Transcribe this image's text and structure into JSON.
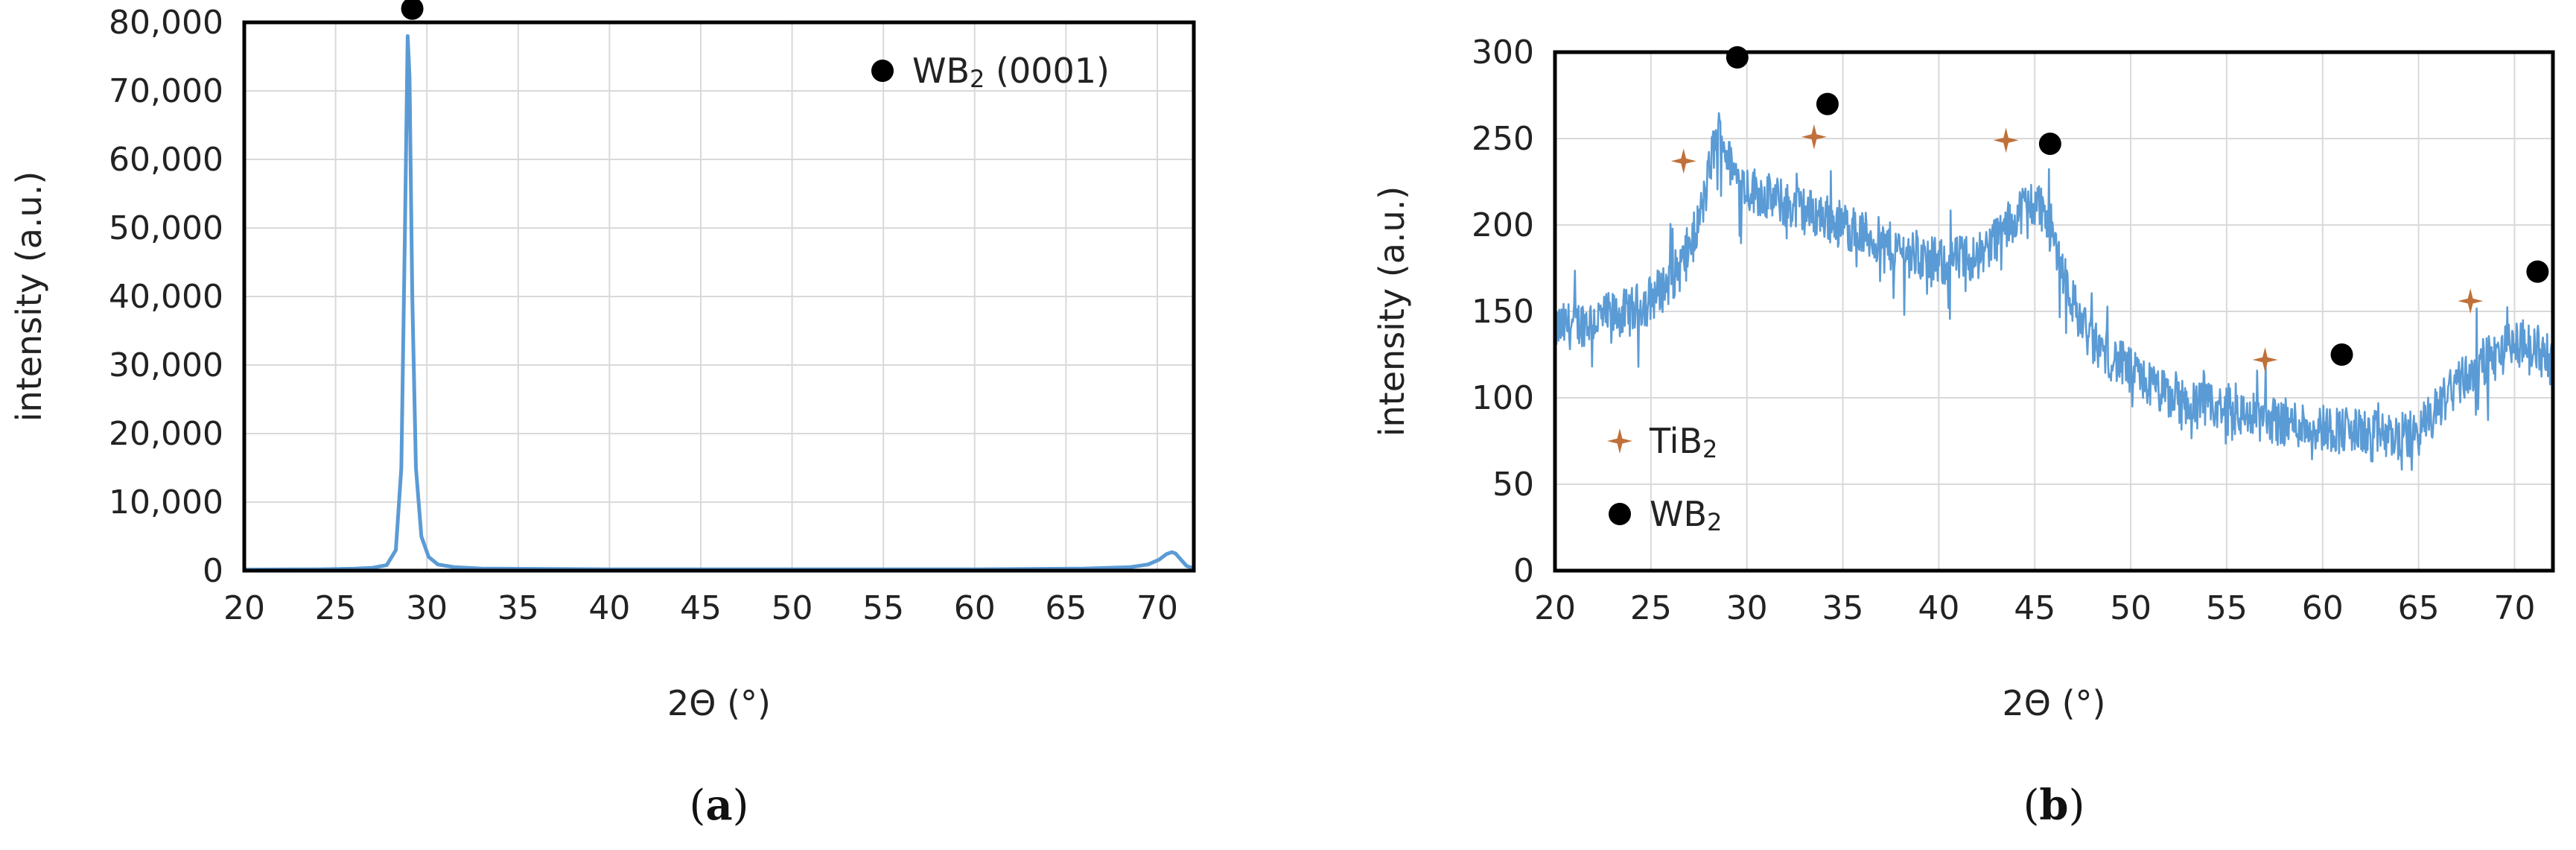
{
  "chart_data": [
    {
      "id": "a",
      "type": "line",
      "caption_letter": "a",
      "xlabel": "2Θ (°)",
      "ylabel": "intensity (a.u.)",
      "xlim": [
        20,
        72
      ],
      "ylim": [
        0,
        80000
      ],
      "xticks": [
        20,
        25,
        30,
        35,
        40,
        45,
        50,
        55,
        60,
        65,
        70
      ],
      "yticks": [
        0,
        10000,
        20000,
        30000,
        40000,
        50000,
        60000,
        70000,
        80000
      ],
      "ytick_labels": [
        "0",
        "10,000",
        "20,000",
        "30,000",
        "40,000",
        "50,000",
        "60,000",
        "70,000",
        "80,000"
      ],
      "grid": true,
      "legend_position": "top-right",
      "legend": [
        {
          "marker": "circle",
          "main": "WB",
          "sub": "2",
          "rest": " (0001)"
        }
      ],
      "series": [
        {
          "color": "#5b9bd5",
          "x": [
            20,
            24,
            26,
            27,
            27.8,
            28.3,
            28.6,
            28.8,
            28.95,
            29.05,
            29.2,
            29.4,
            29.7,
            30.1,
            30.6,
            31.5,
            33,
            40,
            50,
            60,
            66,
            68.5,
            69.5,
            70.1,
            70.5,
            70.8,
            71.0,
            71.3,
            71.6,
            72
          ],
          "y": [
            150,
            200,
            280,
            400,
            800,
            3000,
            15000,
            50000,
            78000,
            72000,
            40000,
            15000,
            5000,
            2000,
            900,
            500,
            300,
            200,
            180,
            200,
            300,
            500,
            900,
            1600,
            2400,
            2700,
            2500,
            1600,
            700,
            300
          ]
        }
      ],
      "annotations": [
        {
          "marker": "circle",
          "x": 29.2,
          "y": 82000
        }
      ]
    },
    {
      "id": "b",
      "type": "line",
      "caption_letter": "b",
      "xlabel": "2Θ (°)",
      "ylabel": "intensity (a.u.)",
      "xlim": [
        20,
        72
      ],
      "ylim": [
        0,
        300
      ],
      "xticks": [
        20,
        25,
        30,
        35,
        40,
        45,
        50,
        55,
        60,
        65,
        70
      ],
      "yticks": [
        0,
        50,
        100,
        150,
        200,
        250,
        300
      ],
      "ytick_labels": [
        "0",
        "50",
        "100",
        "150",
        "200",
        "250",
        "300"
      ],
      "grid": true,
      "legend_position": "bottom-left",
      "legend": [
        {
          "marker": "star",
          "main": "TiB",
          "sub": "2",
          "rest": ""
        },
        {
          "marker": "circle",
          "main": "WB",
          "sub": "2",
          "rest": ""
        }
      ],
      "series": [
        {
          "color": "#5b9bd5",
          "noise": 14,
          "x": [
            20,
            22,
            24,
            25.5,
            26.5,
            27.3,
            27.8,
            28.2,
            28.6,
            29.2,
            30,
            32,
            34,
            36,
            38,
            40,
            42,
            43.5,
            44.5,
            45.3,
            46.2,
            47,
            48,
            50,
            52,
            55,
            58,
            60,
            62,
            64,
            65,
            66,
            67,
            68,
            69,
            70,
            71,
            72
          ],
          "y": [
            140,
            145,
            150,
            162,
            175,
            195,
            215,
            242,
            255,
            232,
            222,
            212,
            205,
            195,
            185,
            178,
            182,
            198,
            212,
            212,
            185,
            155,
            132,
            115,
            100,
            92,
            86,
            83,
            80,
            77,
            80,
            95,
            108,
            118,
            125,
            132,
            130,
            120
          ]
        }
      ],
      "annotations": [
        {
          "marker": "star",
          "x": 26.7,
          "y": 237
        },
        {
          "marker": "star",
          "x": 33.5,
          "y": 251
        },
        {
          "marker": "star",
          "x": 43.5,
          "y": 249
        },
        {
          "marker": "star",
          "x": 57,
          "y": 122
        },
        {
          "marker": "star",
          "x": 67.7,
          "y": 156
        },
        {
          "marker": "circle",
          "x": 29.5,
          "y": 297
        },
        {
          "marker": "circle",
          "x": 34.2,
          "y": 270
        },
        {
          "marker": "circle",
          "x": 45.8,
          "y": 247
        },
        {
          "marker": "circle",
          "x": 61,
          "y": 125
        },
        {
          "marker": "circle",
          "x": 71.2,
          "y": 173
        }
      ]
    }
  ]
}
